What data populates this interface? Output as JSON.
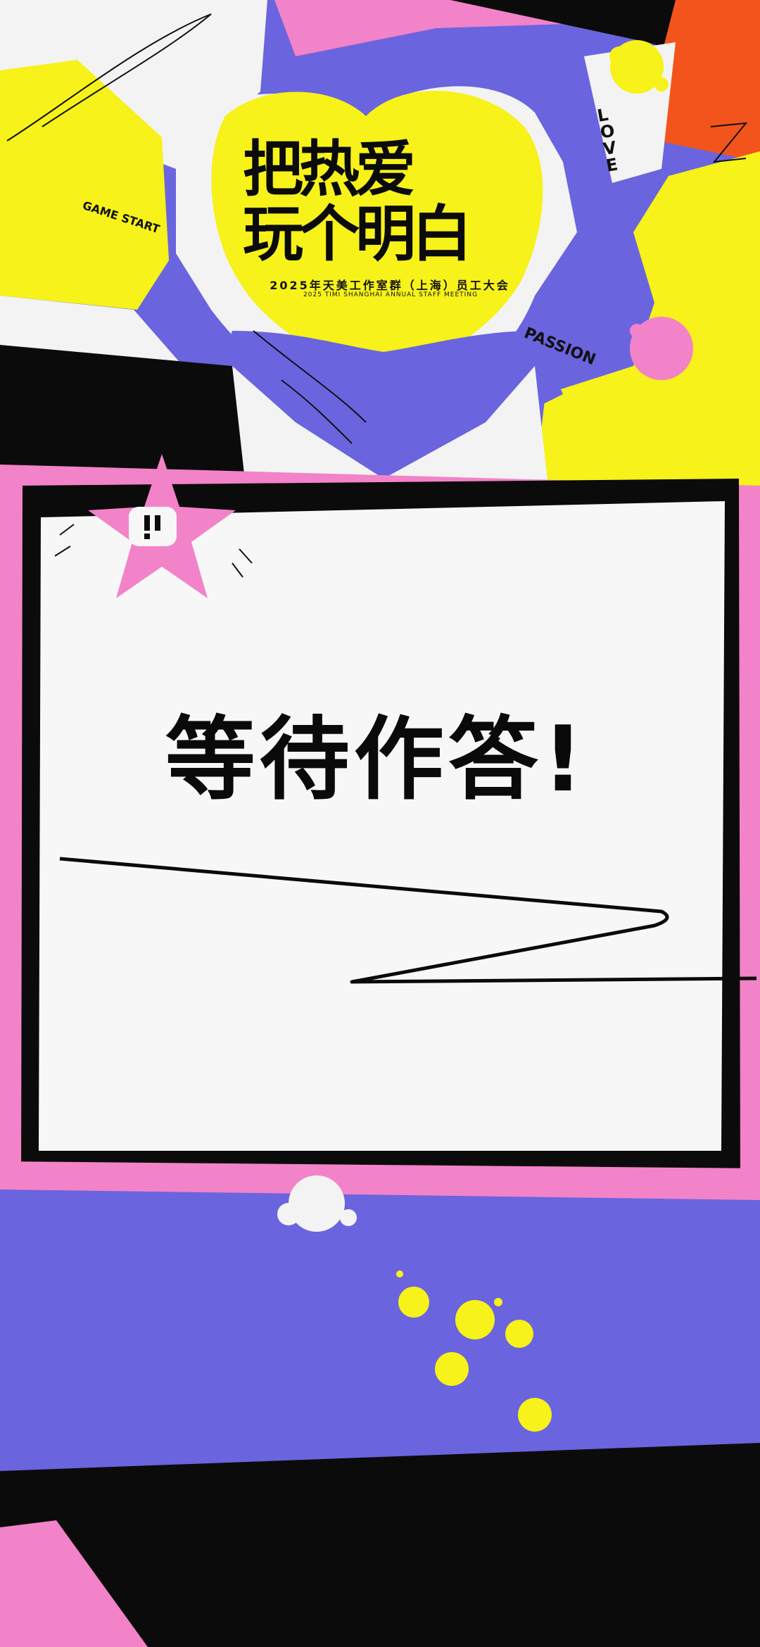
{
  "poster": {
    "title_line1": "把热爱",
    "title_line2": "玩个明白",
    "subtitle_cn": "2025年天美工作室群（上海）员工大会",
    "subtitle_en": "2025 TIMI SHANGHAI ANNUAL STAFF MEETING",
    "tag_love": "LOVE",
    "tag_game_start": "GAME START",
    "tag_passion": "PASSION"
  },
  "card": {
    "status_text": "等待作答!"
  },
  "colors": {
    "yellow": "#f6f21a",
    "purple": "#6a64df",
    "pink": "#f283c8",
    "orange": "#f2541b",
    "black": "#0b0b0b",
    "paper": "#f7f7f7"
  }
}
